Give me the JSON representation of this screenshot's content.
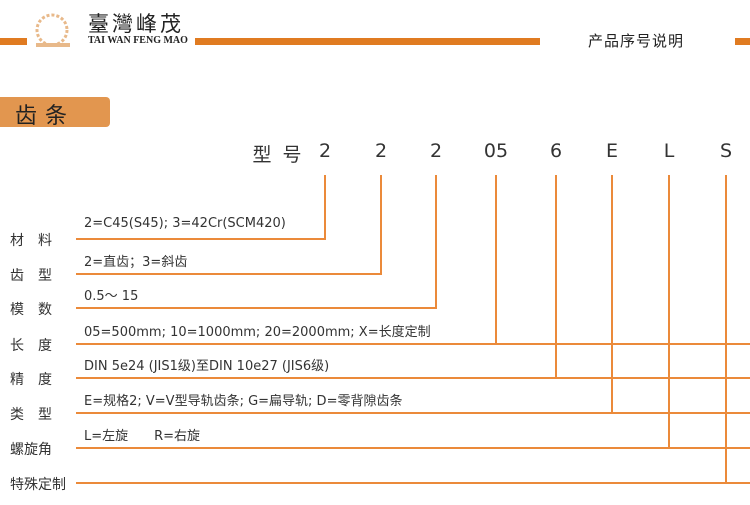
{
  "header": {
    "brand_cn": "臺灣峰茂",
    "brand_en": "TAI WAN FENG MAO",
    "logo_text": "Fengmao",
    "doc_title": "产品序号说明",
    "accent": "#e07b21"
  },
  "section": {
    "title": "齿条"
  },
  "code": {
    "prefix": [
      "型",
      "号"
    ],
    "parts": [
      "2",
      "2",
      "2",
      "05",
      "6",
      "E",
      "L",
      "S"
    ]
  },
  "rows": [
    {
      "label": "材　料",
      "desc": "2=C45(S45); 3=42Cr(SCM420)"
    },
    {
      "label": "齿　型",
      "desc": "2=直齿；3=斜齿"
    },
    {
      "label": "模　数",
      "desc": "0.5～ 15"
    },
    {
      "label": "长　度",
      "desc": "05=500mm; 10=1000mm; 20=2000mm; X=长度定制"
    },
    {
      "label": "精　度",
      "desc": "DIN 5e24 (JIS1级)至DIN 10e27 (JIS6级)"
    },
    {
      "label": "类　型",
      "desc": "E=规格2; V=V型导轨齿条; G=扁导轨; D=零背隙齿条"
    },
    {
      "label": "螺旋角",
      "desc": "L=左旋　　R=右旋"
    },
    {
      "label": "特殊定制",
      "desc": ""
    }
  ]
}
